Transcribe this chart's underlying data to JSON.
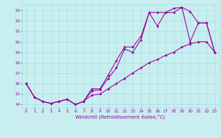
{
  "bg_color": "#c8eef0",
  "grid_color": "#a8dce0",
  "line_color": "#990099",
  "xlabel": "Windchill (Refroidissement éolien,°C)",
  "xlim": [
    -0.5,
    23.5
  ],
  "ylim": [
    13.7,
    23.6
  ],
  "yticks": [
    14,
    15,
    16,
    17,
    18,
    19,
    20,
    21,
    22,
    23
  ],
  "xticks": [
    0,
    1,
    2,
    3,
    4,
    5,
    6,
    7,
    8,
    9,
    10,
    11,
    12,
    13,
    14,
    15,
    16,
    17,
    18,
    19,
    20,
    21,
    22,
    23
  ],
  "line1_x": [
    0,
    1,
    2,
    3,
    4,
    5,
    6,
    7,
    8,
    9,
    10,
    11,
    12,
    13,
    14,
    15,
    16,
    17,
    18,
    19,
    20,
    21,
    22,
    23
  ],
  "line1_y": [
    16.0,
    14.7,
    14.3,
    14.1,
    14.3,
    14.5,
    14.0,
    14.3,
    14.9,
    15.0,
    15.5,
    16.0,
    16.5,
    17.0,
    17.5,
    18.0,
    18.3,
    18.7,
    19.0,
    19.5,
    19.8,
    20.0,
    20.0,
    19.0
  ],
  "line2_x": [
    0,
    1,
    2,
    3,
    4,
    5,
    6,
    7,
    8,
    9,
    10,
    11,
    12,
    13,
    14,
    15,
    16,
    17,
    18,
    19,
    20,
    21,
    22,
    23
  ],
  "line2_y": [
    16.0,
    14.7,
    14.3,
    14.1,
    14.3,
    14.5,
    14.0,
    14.3,
    15.3,
    15.4,
    16.5,
    17.5,
    19.3,
    19.0,
    20.2,
    22.8,
    22.8,
    22.8,
    22.8,
    23.3,
    20.0,
    21.8,
    21.8,
    19.0
  ],
  "line3_x": [
    0,
    1,
    2,
    3,
    4,
    5,
    6,
    7,
    8,
    9,
    10,
    11,
    12,
    13,
    14,
    15,
    16,
    17,
    18,
    19,
    20,
    21,
    22,
    23
  ],
  "line3_y": [
    16.0,
    14.7,
    14.3,
    14.1,
    14.3,
    14.5,
    14.0,
    14.3,
    15.5,
    15.5,
    16.8,
    18.2,
    19.5,
    19.5,
    20.5,
    22.8,
    21.5,
    22.8,
    23.2,
    23.3,
    22.9,
    21.8,
    21.8,
    19.0
  ]
}
